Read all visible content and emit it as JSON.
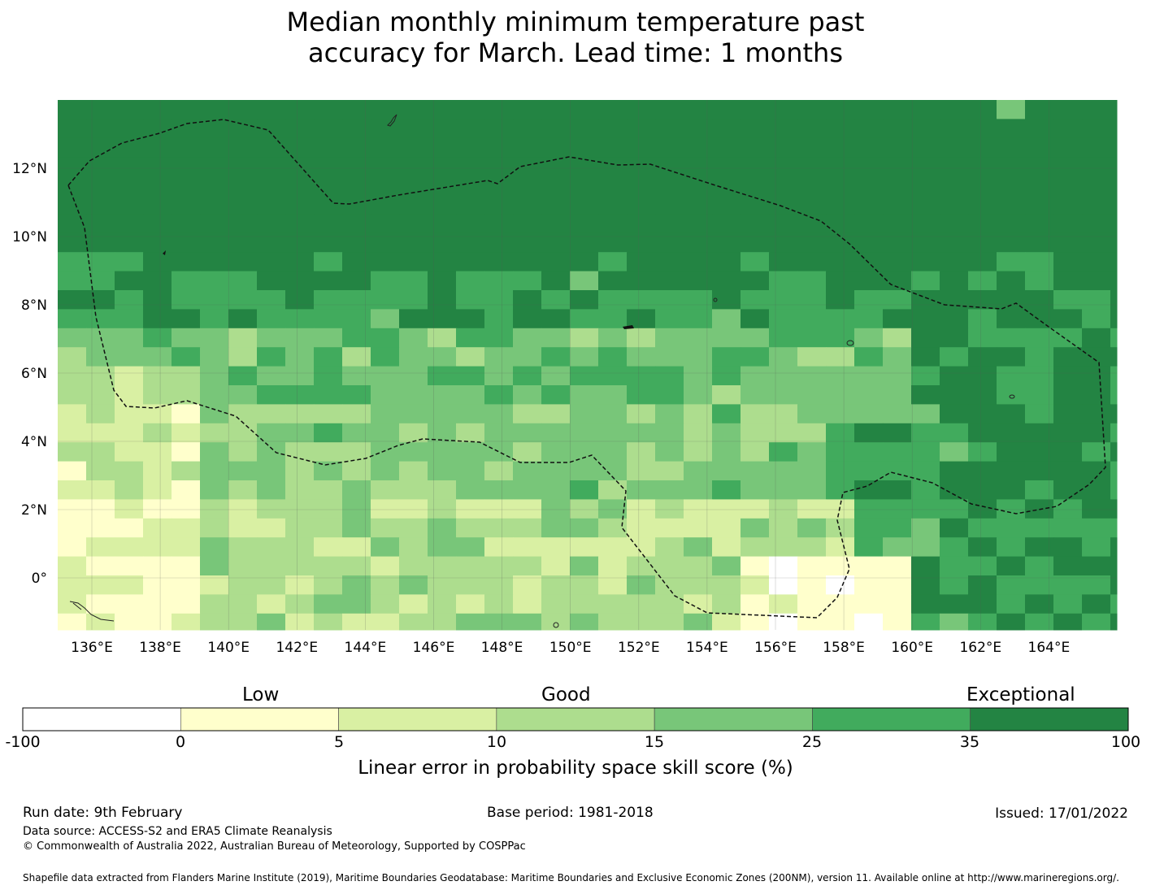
{
  "title": {
    "line1": "Median monthly minimum temperature past",
    "line2": "accuracy for March. Lead time: 1 months"
  },
  "map": {
    "lon_labels": [
      "136°E",
      "138°E",
      "140°E",
      "142°E",
      "144°E",
      "146°E",
      "148°E",
      "150°E",
      "152°E",
      "154°E",
      "156°E",
      "158°E",
      "160°E",
      "162°E",
      "164°E"
    ],
    "lat_labels": [
      "12°N",
      "10°N",
      "8°N",
      "6°N",
      "4°N",
      "2°N",
      "0°"
    ]
  },
  "legend": {
    "categories": [
      "Low",
      "Good",
      "Exceptional"
    ],
    "ticks": [
      "-100",
      "0",
      "5",
      "10",
      "15",
      "25",
      "35",
      "100"
    ],
    "colors": [
      "#ffffff",
      "#ffffcc",
      "#d9f0a3",
      "#addd8e",
      "#78c679",
      "#41ab5d",
      "#238443"
    ],
    "label": "Linear error in probability space skill score (%)"
  },
  "footer": {
    "run_date": "Run date: 9th February",
    "base_period": "Base period: 1981-2018",
    "issued": "Issued: 17/01/2022",
    "data_source": "Data source: ACCESS-S2 and ERA5 Climate Reanalysis",
    "copyright": "© Commonwealth of Australia 2022, Australian Bureau of Meteorology, Supported by COSPPac",
    "shapefile": "Shapefile data extracted from Flanders Marine Institute (2019), Maritime Boundaries Geodatabase: Maritime Boundaries and Exclusive Economic Zones (200NM), version 11. Available online at http://www.marineregions.org/."
  }
}
